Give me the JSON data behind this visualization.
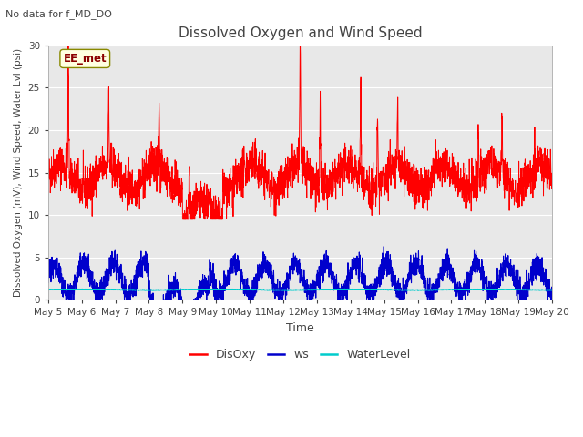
{
  "title": "Dissolved Oxygen and Wind Speed",
  "subtitle": "No data for f_MD_DO",
  "xlabel": "Time",
  "ylabel": "Dissolved Oxygen (mV), Wind Speed, Water Lvl (psi)",
  "ylim": [
    0,
    30
  ],
  "yticks": [
    0,
    5,
    10,
    15,
    20,
    25,
    30
  ],
  "xtick_labels": [
    "May 5",
    "May 6",
    "May 7",
    "May 8",
    "May 9",
    "May 10",
    "May 11",
    "May 12",
    "May 13",
    "May 14",
    "May 15",
    "May 16",
    "May 17",
    "May 18",
    "May 19",
    "May 20"
  ],
  "legend_labels": [
    "DisOxy",
    "ws",
    "WaterLevel"
  ],
  "annotation_text": "EE_met",
  "fig_facecolor": "#ffffff",
  "axes_facecolor": "#e8e8e8",
  "disoxy_color": "#ff0000",
  "ws_color": "#0000cc",
  "water_color": "#00cccc",
  "n_points": 3000,
  "figwidth": 6.4,
  "figheight": 4.8,
  "dpi": 100
}
